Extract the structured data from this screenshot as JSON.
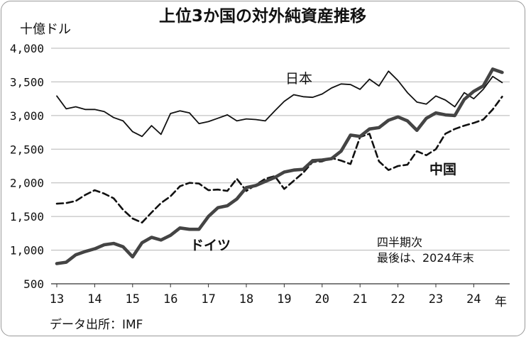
{
  "chart_data": {
    "type": "line",
    "title": "上位3か国の対外純資産推移",
    "ylabel": "十億ドル",
    "x_unit": "年",
    "ylim": [
      500,
      4000
    ],
    "yticks": [
      "4,000",
      "3,500",
      "3,000",
      "2,500",
      "2,000",
      "1,500",
      "1,000",
      "500"
    ],
    "ytick_values": [
      4000,
      3500,
      3000,
      2500,
      2000,
      1500,
      1000,
      500
    ],
    "xticks": [
      "13",
      "14",
      "15",
      "16",
      "17",
      "18",
      "19",
      "20",
      "21",
      "22",
      "23",
      "24"
    ],
    "grid": "horizontal",
    "note": [
      "四半期次",
      "最後は、2024年末"
    ],
    "source": "データ出所：IMF",
    "series": [
      {
        "name": "日本",
        "style": "thin-solid",
        "x": [
          2013.0,
          2013.25,
          2013.5,
          2013.75,
          2014.0,
          2014.25,
          2014.5,
          2014.75,
          2015.0,
          2015.25,
          2015.5,
          2015.75,
          2016.0,
          2016.25,
          2016.5,
          2016.75,
          2017.0,
          2017.25,
          2017.5,
          2017.75,
          2018.0,
          2018.25,
          2018.5,
          2018.75,
          2019.0,
          2019.25,
          2019.5,
          2019.75,
          2020.0,
          2020.25,
          2020.5,
          2020.75,
          2021.0,
          2021.25,
          2021.5,
          2021.75,
          2022.0,
          2022.25,
          2022.5,
          2022.75,
          2023.0,
          2023.25,
          2023.5,
          2023.75,
          2024.0,
          2024.25,
          2024.5,
          2024.75
        ],
        "values": [
          3290,
          3100,
          3130,
          3090,
          3090,
          3060,
          2970,
          2920,
          2760,
          2690,
          2850,
          2720,
          3030,
          3070,
          3040,
          2880,
          2910,
          2960,
          3010,
          2920,
          2950,
          2940,
          2920,
          3070,
          3210,
          3310,
          3280,
          3270,
          3320,
          3410,
          3470,
          3460,
          3390,
          3540,
          3440,
          3660,
          3520,
          3340,
          3200,
          3170,
          3290,
          3230,
          3130,
          3340,
          3250,
          3390,
          3580,
          3490
        ]
      },
      {
        "name": "中国",
        "style": "dashed",
        "x": [
          2013.0,
          2013.25,
          2013.5,
          2013.75,
          2014.0,
          2014.25,
          2014.5,
          2014.75,
          2015.0,
          2015.25,
          2015.5,
          2015.75,
          2016.0,
          2016.25,
          2016.5,
          2016.75,
          2017.0,
          2017.25,
          2017.5,
          2017.75,
          2018.0,
          2018.25,
          2018.5,
          2018.75,
          2019.0,
          2019.25,
          2019.5,
          2019.75,
          2020.0,
          2020.25,
          2020.5,
          2020.75,
          2021.0,
          2021.25,
          2021.5,
          2021.75,
          2022.0,
          2022.25,
          2022.5,
          2022.75,
          2023.0,
          2023.25,
          2023.5,
          2023.75,
          2024.0,
          2024.25,
          2024.5,
          2024.75
        ],
        "values": [
          1690,
          1700,
          1730,
          1820,
          1890,
          1840,
          1770,
          1600,
          1470,
          1410,
          1560,
          1700,
          1800,
          1950,
          2000,
          1990,
          1890,
          1900,
          1880,
          2060,
          1880,
          1970,
          2060,
          2100,
          1910,
          2030,
          2150,
          2310,
          2320,
          2370,
          2330,
          2280,
          2680,
          2730,
          2320,
          2190,
          2250,
          2270,
          2470,
          2410,
          2500,
          2730,
          2800,
          2850,
          2890,
          2940,
          3090,
          3280
        ]
      },
      {
        "name": "ドイツ",
        "style": "thick-solid",
        "x": [
          2013.0,
          2013.25,
          2013.5,
          2013.75,
          2014.0,
          2014.25,
          2014.5,
          2014.75,
          2015.0,
          2015.25,
          2015.5,
          2015.75,
          2016.0,
          2016.25,
          2016.5,
          2016.75,
          2017.0,
          2017.25,
          2017.5,
          2017.75,
          2018.0,
          2018.25,
          2018.5,
          2018.75,
          2019.0,
          2019.25,
          2019.5,
          2019.75,
          2020.0,
          2020.25,
          2020.5,
          2020.75,
          2021.0,
          2021.25,
          2021.5,
          2021.75,
          2022.0,
          2022.25,
          2022.5,
          2022.75,
          2023.0,
          2023.25,
          2023.5,
          2023.75,
          2024.0,
          2024.25,
          2024.5,
          2024.75
        ],
        "values": [
          800,
          820,
          930,
          980,
          1020,
          1080,
          1100,
          1050,
          900,
          1110,
          1190,
          1150,
          1220,
          1330,
          1310,
          1310,
          1500,
          1630,
          1660,
          1760,
          1930,
          1960,
          2020,
          2080,
          2160,
          2190,
          2200,
          2330,
          2340,
          2360,
          2470,
          2710,
          2690,
          2800,
          2820,
          2930,
          2980,
          2920,
          2780,
          2960,
          3040,
          3010,
          3000,
          3240,
          3360,
          3440,
          3690,
          3640
        ]
      }
    ]
  }
}
